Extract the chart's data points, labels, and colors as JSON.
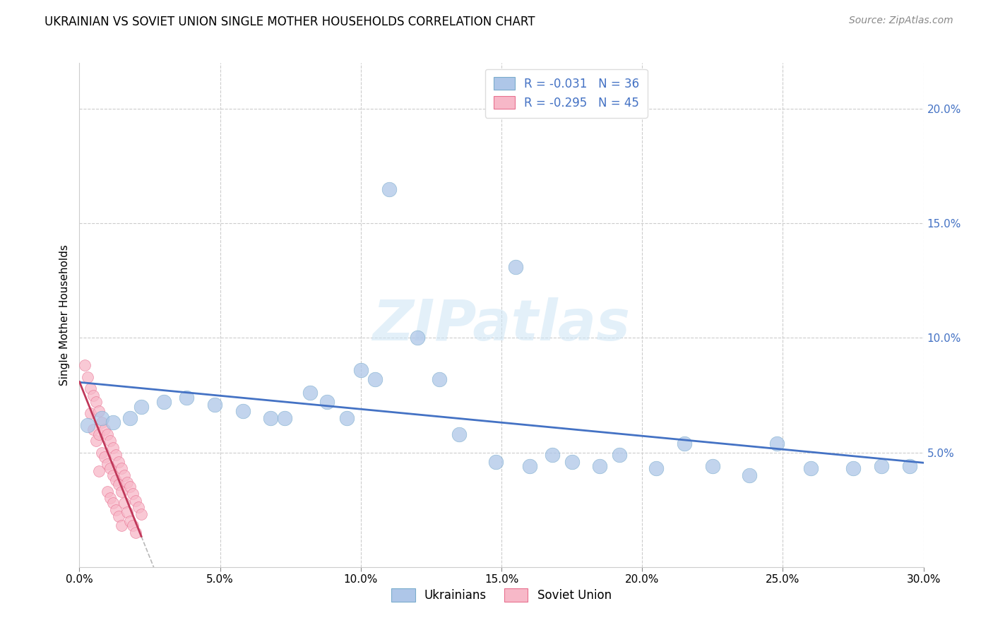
{
  "title": "UKRAINIAN VS SOVIET UNION SINGLE MOTHER HOUSEHOLDS CORRELATION CHART",
  "source": "Source: ZipAtlas.com",
  "ylabel": "Single Mother Households",
  "xlim": [
    0,
    0.3
  ],
  "ylim": [
    0,
    0.22
  ],
  "legend_r_blue": "R = -0.031",
  "legend_n_blue": "N = 36",
  "legend_r_pink": "R = -0.295",
  "legend_n_pink": "N = 45",
  "blue_color": "#aec6e8",
  "pink_color": "#f7b8c8",
  "line_blue": "#4472c4",
  "line_pink": "#c0385a",
  "line_gray": "#c8c8c8",
  "watermark": "ZIPatlas",
  "grid_color": "#cccccc",
  "ukrainians_x": [
    0.003,
    0.008,
    0.012,
    0.018,
    0.022,
    0.03,
    0.038,
    0.048,
    0.058,
    0.068,
    0.073,
    0.082,
    0.088,
    0.095,
    0.1,
    0.105,
    0.11,
    0.12,
    0.128,
    0.135,
    0.148,
    0.155,
    0.16,
    0.168,
    0.175,
    0.185,
    0.192,
    0.205,
    0.215,
    0.225,
    0.238,
    0.248,
    0.26,
    0.275,
    0.285,
    0.295
  ],
  "ukrainians_y": [
    0.062,
    0.065,
    0.063,
    0.065,
    0.07,
    0.072,
    0.074,
    0.071,
    0.068,
    0.065,
    0.065,
    0.076,
    0.072,
    0.065,
    0.086,
    0.082,
    0.165,
    0.1,
    0.082,
    0.058,
    0.046,
    0.131,
    0.044,
    0.049,
    0.046,
    0.044,
    0.049,
    0.043,
    0.054,
    0.044,
    0.04,
    0.054,
    0.043,
    0.043,
    0.044,
    0.044
  ],
  "soviet_x": [
    0.002,
    0.003,
    0.004,
    0.004,
    0.005,
    0.005,
    0.006,
    0.006,
    0.007,
    0.007,
    0.007,
    0.008,
    0.008,
    0.009,
    0.009,
    0.01,
    0.01,
    0.01,
    0.011,
    0.011,
    0.011,
    0.012,
    0.012,
    0.012,
    0.013,
    0.013,
    0.013,
    0.014,
    0.014,
    0.014,
    0.015,
    0.015,
    0.015,
    0.016,
    0.016,
    0.017,
    0.017,
    0.018,
    0.018,
    0.019,
    0.019,
    0.02,
    0.02,
    0.021,
    0.022
  ],
  "soviet_y": [
    0.088,
    0.083,
    0.078,
    0.067,
    0.075,
    0.06,
    0.072,
    0.055,
    0.068,
    0.058,
    0.042,
    0.063,
    0.05,
    0.06,
    0.048,
    0.058,
    0.045,
    0.033,
    0.055,
    0.043,
    0.03,
    0.052,
    0.04,
    0.028,
    0.049,
    0.038,
    0.025,
    0.046,
    0.036,
    0.022,
    0.043,
    0.033,
    0.018,
    0.04,
    0.028,
    0.037,
    0.024,
    0.035,
    0.02,
    0.032,
    0.018,
    0.029,
    0.015,
    0.026,
    0.023
  ]
}
